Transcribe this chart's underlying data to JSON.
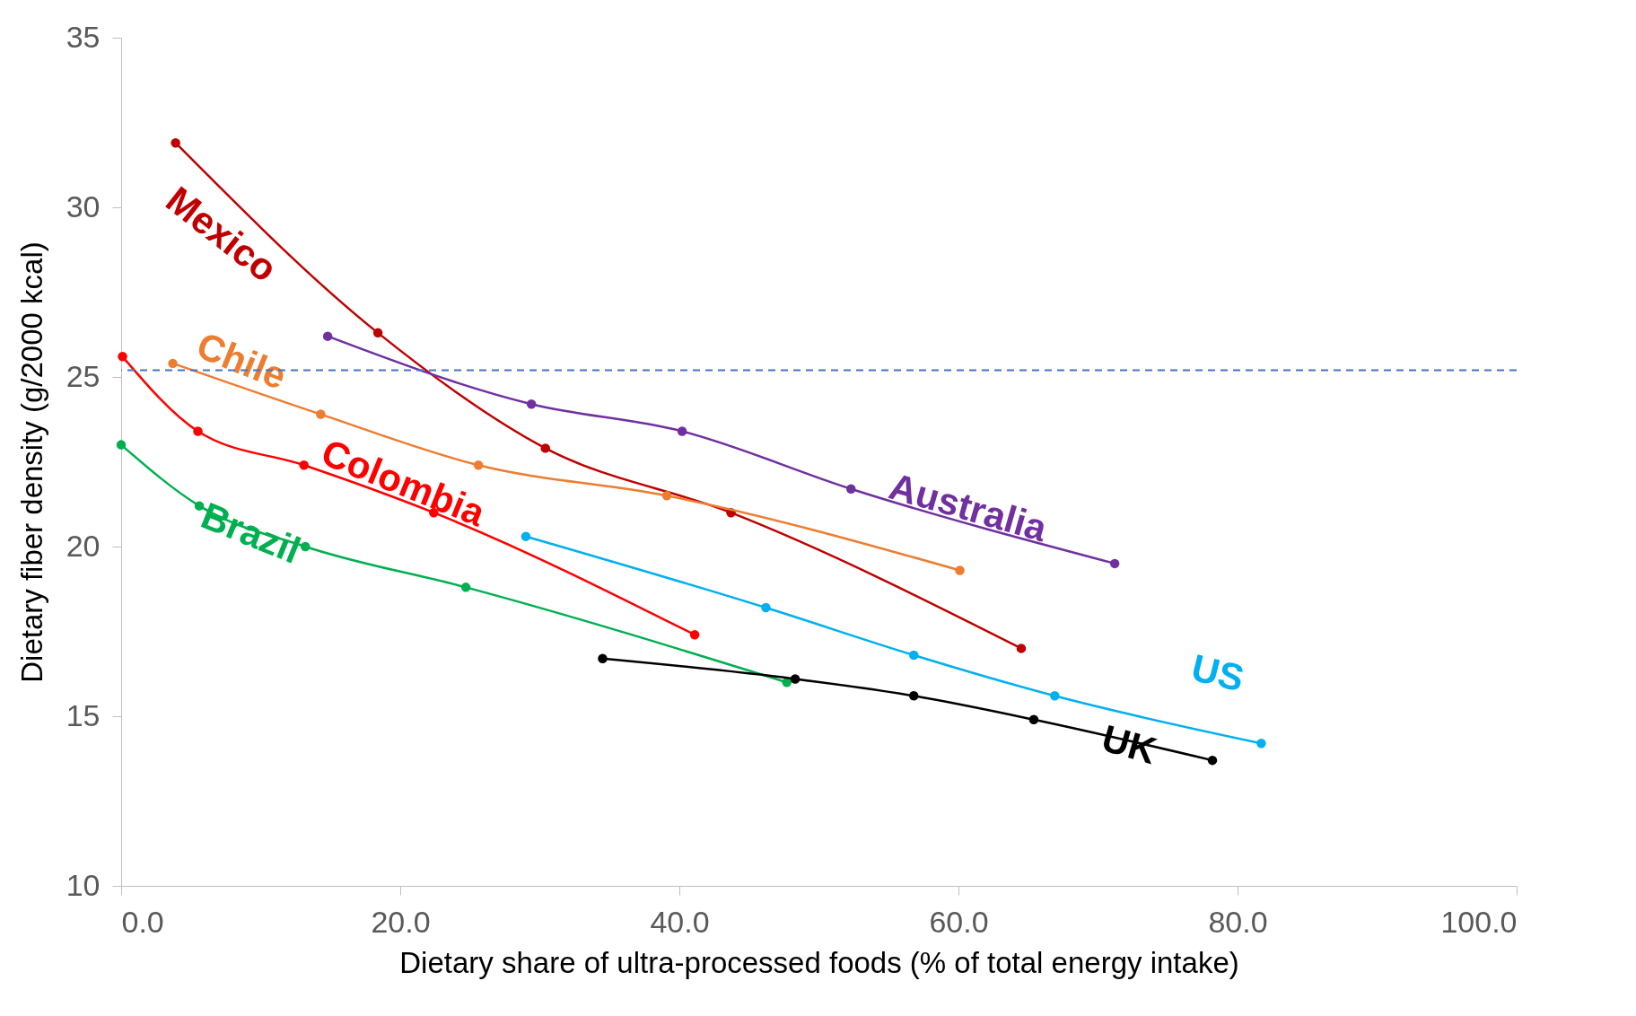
{
  "chart_data": {
    "type": "line",
    "xlabel": "Dietary share of ultra-processed foods (% of total energy intake)",
    "ylabel": "Dietary fiber density (g/2000 kcal)",
    "xlim": [
      0,
      100
    ],
    "ylim": [
      10,
      35
    ],
    "xticks": [
      {
        "value": 0,
        "label": "0.0"
      },
      {
        "value": 20,
        "label": "20.0"
      },
      {
        "value": 40,
        "label": "40.0"
      },
      {
        "value": 60,
        "label": "60.0"
      },
      {
        "value": 80,
        "label": "80.0"
      },
      {
        "value": 100,
        "label": "100.0"
      }
    ],
    "yticks": [
      10,
      15,
      20,
      25,
      30,
      35
    ],
    "grid": false,
    "marker": "circle",
    "line_style": "solid",
    "ref_lines": [
      {
        "axis": "y",
        "value": 25.2,
        "label": null,
        "color": "#4472c4",
        "line_style": "dashed"
      }
    ],
    "series": [
      {
        "name": "Mexico",
        "color": "#c00000",
        "x": [
          3.9,
          18.4,
          30.4,
          43.7,
          64.5
        ],
        "values": [
          31.9,
          26.3,
          22.9,
          21.0,
          17.0
        ]
      },
      {
        "name": "Chile",
        "color": "#ed7d31",
        "x": [
          3.7,
          14.3,
          25.6,
          39.1,
          60.1
        ],
        "values": [
          25.4,
          23.9,
          22.4,
          21.5,
          19.3
        ]
      },
      {
        "name": "Colombia",
        "color": "#ff0000",
        "x": [
          0.1,
          5.5,
          13.1,
          22.4,
          41.1
        ],
        "values": [
          25.6,
          23.4,
          22.4,
          21.0,
          17.4
        ]
      },
      {
        "name": "Brazil",
        "color": "#00b050",
        "x": [
          0,
          5.6,
          13.2,
          24.7,
          47.7
        ],
        "values": [
          23.0,
          21.2,
          20.0,
          18.8,
          16.0
        ]
      },
      {
        "name": "Australia",
        "color": "#7030a0",
        "x": [
          14.8,
          29.4,
          40.2,
          52.3,
          71.2
        ],
        "values": [
          26.2,
          24.2,
          23.4,
          21.7,
          19.5
        ]
      },
      {
        "name": "US",
        "color": "#00b0f0",
        "x": [
          29.0,
          46.2,
          56.8,
          66.9,
          81.7
        ],
        "values": [
          20.3,
          18.2,
          16.8,
          15.6,
          14.2
        ]
      },
      {
        "name": "UK",
        "color": "#000000",
        "x": [
          34.5,
          48.3,
          56.8,
          65.4,
          78.2
        ],
        "values": [
          16.7,
          16.1,
          15.6,
          14.9,
          13.7
        ]
      }
    ]
  }
}
